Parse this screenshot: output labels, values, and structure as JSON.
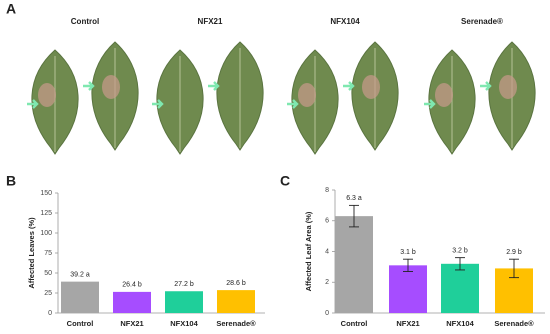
{
  "panel_a": {
    "label": "A",
    "columns": [
      "Control",
      "NFX21",
      "NFX104",
      "Serenade®"
    ]
  },
  "chart_data": [
    {
      "type": "bar",
      "panel": "B",
      "ylabel": "Affected Leaves (%)",
      "categories": [
        "Control",
        "NFX21",
        "NFX104",
        "Serenade®"
      ],
      "values": [
        39.2,
        26.4,
        27.2,
        28.6
      ],
      "value_labels": [
        "39.2 a",
        "26.4 b",
        "27.2 b",
        "28.6 b"
      ],
      "colors": [
        "#a6a6a6",
        "#a64dff",
        "#1fcf9a",
        "#ffc000"
      ],
      "ylim": [
        0,
        150
      ],
      "yticks": [
        0,
        25,
        50,
        75,
        100,
        125,
        150
      ]
    },
    {
      "type": "bar",
      "panel": "C",
      "ylabel": "Affected Leaf Area (%)",
      "categories": [
        "Control",
        "NFX21",
        "NFX104",
        "Serenade®"
      ],
      "values": [
        6.3,
        3.1,
        3.2,
        2.9
      ],
      "errors": [
        0.7,
        0.4,
        0.4,
        0.6
      ],
      "value_labels": [
        "6.3 a",
        "3.1 b",
        "3.2 b",
        "2.9 b"
      ],
      "colors": [
        "#a6a6a6",
        "#a64dff",
        "#1fcf9a",
        "#ffc000"
      ],
      "ylim": [
        0,
        8
      ],
      "yticks": [
        0,
        2,
        4,
        6,
        8
      ]
    }
  ]
}
